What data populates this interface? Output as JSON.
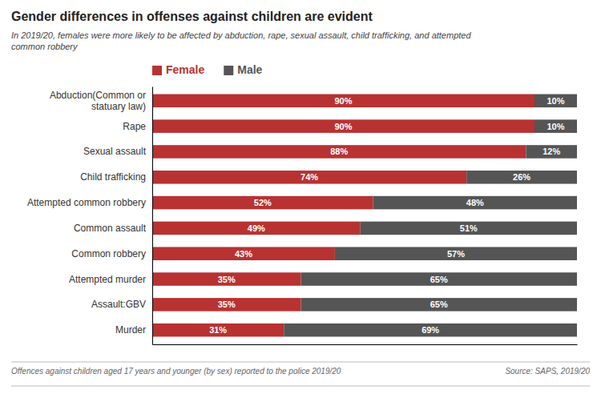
{
  "chart_data": {
    "type": "bar",
    "orientation": "horizontal",
    "stacked": true,
    "data_labels": true,
    "tick_labels": "y",
    "grid": false,
    "title": "Gender differences in offenses against children are evident",
    "subtitle": "In 2019/20, females were more likely to be affected by abduction, rape, sexual assault, child trafficking, and attempted\ncommon robbery",
    "footnote": "Offences against children aged 17 years and younger (by sex) reported to the police 2019/20",
    "source": "Source: SAPS, 2019/20",
    "categories": [
      "Abduction(Common or\nstatuary law)",
      "Rape",
      "Sexual assault",
      "Child trafficking",
      "Attempted common robbery",
      "Common assault",
      "Common robbery",
      "Attempted murder",
      "Assault:GBV",
      "Murder"
    ],
    "series": [
      {
        "name": "Female",
        "color": "#B83232",
        "values": [
          90,
          90,
          88,
          74,
          52,
          49,
          43,
          35,
          35,
          31
        ],
        "value_labels": [
          "90%",
          "90%",
          "88%",
          "74%",
          "52%",
          "49%",
          "43%",
          "35%",
          "35%",
          "31%"
        ]
      },
      {
        "name": "Male",
        "color": "#555555",
        "values": [
          10,
          10,
          12,
          26,
          48,
          51,
          57,
          65,
          65,
          69
        ],
        "value_labels": [
          "10%",
          "10%",
          "12%",
          "26%",
          "48%",
          "51%",
          "57%",
          "65%",
          "65%",
          "69%"
        ]
      }
    ],
    "xlim": [
      0,
      100
    ]
  }
}
